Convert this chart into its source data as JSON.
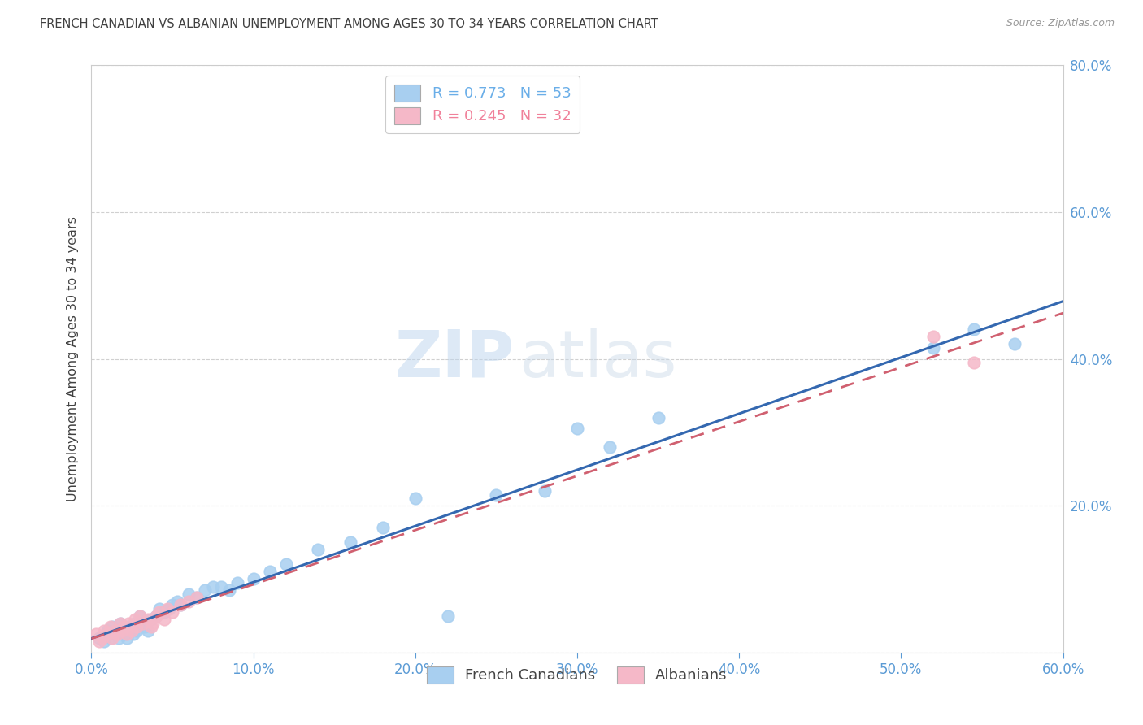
{
  "title": "FRENCH CANADIAN VS ALBANIAN UNEMPLOYMENT AMONG AGES 30 TO 34 YEARS CORRELATION CHART",
  "source": "Source: ZipAtlas.com",
  "ylabel": "Unemployment Among Ages 30 to 34 years",
  "xlim": [
    0.0,
    0.6
  ],
  "ylim": [
    0.0,
    0.8
  ],
  "xticks": [
    0.0,
    0.1,
    0.2,
    0.3,
    0.4,
    0.5,
    0.6
  ],
  "yticks": [
    0.0,
    0.2,
    0.4,
    0.6,
    0.8
  ],
  "watermark_zip": "ZIP",
  "watermark_atlas": "atlas",
  "legend_entries": [
    {
      "label": "R = 0.773   N = 53",
      "color": "#6aaee8"
    },
    {
      "label": "R = 0.245   N = 32",
      "color": "#f0819a"
    }
  ],
  "french_canadian_x": [
    0.005,
    0.008,
    0.01,
    0.01,
    0.012,
    0.013,
    0.015,
    0.016,
    0.017,
    0.018,
    0.02,
    0.021,
    0.022,
    0.023,
    0.025,
    0.026,
    0.027,
    0.028,
    0.03,
    0.031,
    0.033,
    0.035,
    0.037,
    0.04,
    0.042,
    0.045,
    0.048,
    0.05,
    0.053,
    0.055,
    0.06,
    0.065,
    0.07,
    0.075,
    0.08,
    0.085,
    0.09,
    0.1,
    0.11,
    0.12,
    0.14,
    0.16,
    0.18,
    0.2,
    0.22,
    0.25,
    0.28,
    0.3,
    0.32,
    0.35,
    0.52,
    0.545,
    0.57
  ],
  "french_canadian_y": [
    0.02,
    0.015,
    0.03,
    0.025,
    0.02,
    0.035,
    0.025,
    0.03,
    0.02,
    0.04,
    0.03,
    0.025,
    0.02,
    0.035,
    0.03,
    0.025,
    0.04,
    0.03,
    0.05,
    0.04,
    0.035,
    0.03,
    0.045,
    0.05,
    0.06,
    0.055,
    0.06,
    0.065,
    0.07,
    0.065,
    0.08,
    0.075,
    0.085,
    0.09,
    0.09,
    0.085,
    0.095,
    0.1,
    0.11,
    0.12,
    0.14,
    0.15,
    0.17,
    0.21,
    0.05,
    0.215,
    0.22,
    0.305,
    0.28,
    0.32,
    0.415,
    0.44,
    0.42
  ],
  "albanian_x": [
    0.003,
    0.005,
    0.007,
    0.008,
    0.01,
    0.012,
    0.013,
    0.015,
    0.016,
    0.018,
    0.019,
    0.02,
    0.022,
    0.023,
    0.025,
    0.027,
    0.028,
    0.03,
    0.032,
    0.035,
    0.037,
    0.038,
    0.04,
    0.042,
    0.045,
    0.047,
    0.05,
    0.055,
    0.06,
    0.065,
    0.52,
    0.545
  ],
  "albanian_y": [
    0.025,
    0.015,
    0.02,
    0.03,
    0.025,
    0.035,
    0.02,
    0.03,
    0.025,
    0.04,
    0.03,
    0.035,
    0.025,
    0.04,
    0.03,
    0.045,
    0.035,
    0.05,
    0.04,
    0.045,
    0.035,
    0.04,
    0.05,
    0.055,
    0.045,
    0.06,
    0.055,
    0.065,
    0.07,
    0.075,
    0.43,
    0.395
  ],
  "fc_color": "#a8cff0",
  "alb_color": "#f5b8c8",
  "fc_line_color": "#3468b0",
  "alb_line_color": "#d06070",
  "title_color": "#404040",
  "axis_label_color": "#5b9bd5",
  "ytick_right_color": "#5b9bd5",
  "grid_color": "#d0d0d0",
  "background_color": "#ffffff"
}
